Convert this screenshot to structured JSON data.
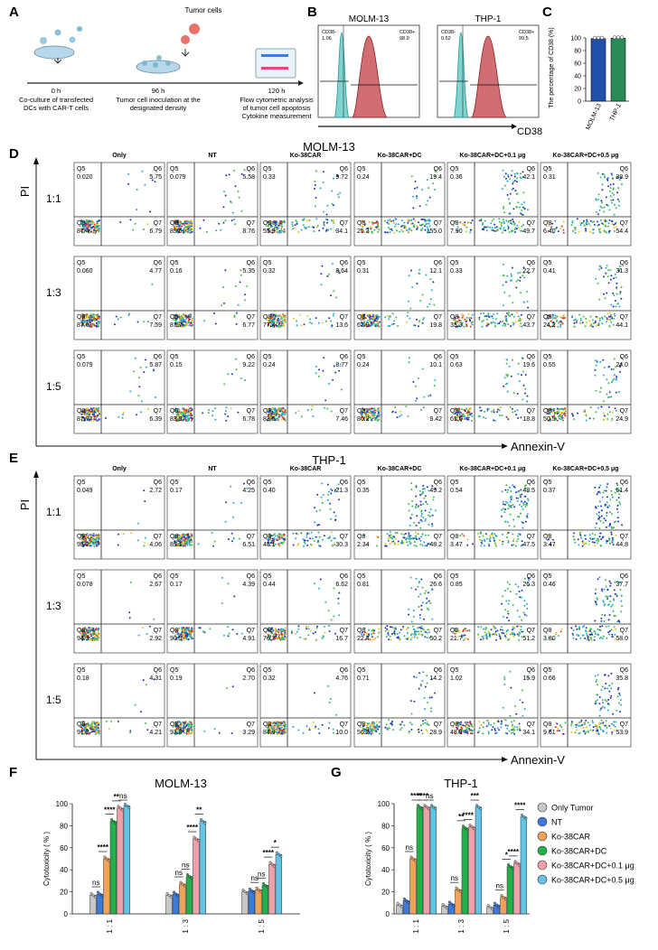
{
  "panel_a": {
    "letter": "A",
    "tumor_cells": "Tumor cells",
    "steps": [
      {
        "time": "0 h",
        "desc": [
          "Co-culture of transfected",
          "DCs with CAR-T cells"
        ]
      },
      {
        "time": "96 h",
        "desc": [
          "Tumor cell inoculation at the",
          "designated density"
        ]
      },
      {
        "time": "120 h",
        "desc": [
          "Flow cytometric analysis",
          "of tumor cell apoptosis",
          "Cytokine measurement"
        ]
      }
    ]
  },
  "panel_b": {
    "letter": "B",
    "xlabel": "CD38",
    "plots": [
      {
        "title": "MOLM-13",
        "neg_label": "CD38-",
        "neg_value": "1.06",
        "pos_label": "CD38+",
        "pos_value": "98.9"
      },
      {
        "title": "THP-1",
        "neg_label": "CD38-",
        "neg_value": "0.52",
        "pos_label": "CD38+",
        "pos_value": "99.5"
      }
    ]
  },
  "panel_c": {
    "letter": "C",
    "ylabel": "The percentage of CD38 (%)",
    "chart_data": {
      "type": "bar",
      "categories": [
        "MOLM-13",
        "THP-1"
      ],
      "values": [
        98.9,
        99.5
      ],
      "ylim": [
        0,
        100
      ],
      "yticks": [
        0,
        20,
        40,
        60,
        80,
        100
      ],
      "colors": [
        "#1f4fa8",
        "#2a8a55"
      ]
    }
  },
  "flow_common": {
    "columns": [
      "Only",
      "NT",
      "Ko-38CAR",
      "Ko-38CAR+DC",
      "Ko-38CAR+DC+0.1 μg",
      "Ko-38CAR+DC+0.5 μg"
    ],
    "rows": [
      "1:1",
      "1:3",
      "1:5"
    ],
    "yaxis": "PI",
    "xaxis": "Annexin-V",
    "quadrants": [
      "Q5",
      "Q6",
      "Q7",
      "Q8"
    ]
  },
  "panel_d": {
    "letter": "D",
    "title": "MOLM-13",
    "values": [
      [
        [
          "0.020",
          "5.75",
          "6.79",
          "87.4"
        ],
        [
          "0.079",
          "5.58",
          "8.76",
          "85.6"
        ],
        [
          "0.33",
          "9.72",
          "34.1",
          "55.9"
        ],
        [
          "0.24",
          "19.4",
          "55.0",
          "25.3"
        ],
        [
          "0.36",
          "42.1",
          "49.7",
          "7.90"
        ],
        [
          "0.31",
          "38.9",
          "54.4",
          "6.40"
        ]
      ],
      [
        [
          "0.060",
          "4.77",
          "7.59",
          "87.6"
        ],
        [
          "0.16",
          "5.35",
          "6.77",
          "87.7"
        ],
        [
          "0.32",
          "8.64",
          "13.6",
          "77.4"
        ],
        [
          "0.31",
          "12.1",
          "19.8",
          "67.9"
        ],
        [
          "0.33",
          "22.7",
          "43.7",
          "33.3"
        ],
        [
          "0.41",
          "31.3",
          "44.1",
          "24.2"
        ]
      ],
      [
        [
          "0.079",
          "5.87",
          "6.39",
          "87.7"
        ],
        [
          "0.15",
          "9.22",
          "6.78",
          "83.9"
        ],
        [
          "0.24",
          "8.77",
          "7.46",
          "83.5"
        ],
        [
          "0.24",
          "10.1",
          "9.42",
          "80.2"
        ],
        [
          "0.63",
          "19.6",
          "18.8",
          "61.0"
        ],
        [
          "0.55",
          "24.0",
          "24.9",
          "50.5"
        ]
      ]
    ]
  },
  "panel_e": {
    "letter": "E",
    "title": "THP-1",
    "values": [
      [
        [
          "0.049",
          "2.72",
          "4.06",
          "93.2"
        ],
        [
          "0.17",
          "4.25",
          "6.51",
          "89.1"
        ],
        [
          "0.40",
          "21.3",
          "30.3",
          "48.1"
        ],
        [
          "0.35",
          "49.2",
          "48.2",
          "2.34"
        ],
        [
          "0.54",
          "48.5",
          "47.5",
          "3.47"
        ],
        [
          "0.37",
          "51.4",
          "44.8",
          "3.47"
        ]
      ],
      [
        [
          "0.078",
          "2.67",
          "2.92",
          "94.3"
        ],
        [
          "0.17",
          "4.39",
          "4.91",
          "90.5"
        ],
        [
          "0.44",
          "6.62",
          "16.7",
          "76.2"
        ],
        [
          "0.81",
          "26.6",
          "50.2",
          "22.4"
        ],
        [
          "0.85",
          "26.3",
          "51.2",
          "21.7"
        ],
        [
          "0.46",
          "37.7",
          "58.0",
          "3.80"
        ]
      ],
      [
        [
          "0.18",
          "4.31",
          "4.21",
          "91.3"
        ],
        [
          "0.19",
          "2.70",
          "3.29",
          "93.8"
        ],
        [
          "0.32",
          "4.76",
          "10.0",
          "84.9"
        ],
        [
          "0.71",
          "14.2",
          "28.9",
          "56.2"
        ],
        [
          "1.02",
          "15.9",
          "34.1",
          "48.9"
        ],
        [
          "0.66",
          "35.8",
          "53.9",
          "9.61"
        ]
      ]
    ]
  },
  "panel_f": {
    "letter": "F",
    "ylabel": "Cytotoxicity ( % )",
    "chart_data": {
      "type": "bar",
      "title": "MOLM-13",
      "categories": [
        "1 : 1",
        "1 : 3",
        "1 : 5"
      ],
      "ylim": [
        0,
        100
      ],
      "yticks": [
        0,
        20,
        40,
        60,
        80,
        100
      ],
      "series": [
        {
          "name": "Only Tumor",
          "values": [
            17,
            17,
            20
          ]
        },
        {
          "name": "NT",
          "values": [
            18,
            18,
            21
          ]
        },
        {
          "name": "Ko-38CAR",
          "values": [
            50,
            27,
            22
          ]
        },
        {
          "name": "Ko-38CAR+DC",
          "values": [
            84,
            34,
            26
          ]
        },
        {
          "name": "Ko-38CAR+DC+0.1 μg",
          "values": [
            96,
            68,
            45
          ]
        },
        {
          "name": "Ko-38CAR+DC+0.5 μg",
          "values": [
            98,
            84,
            54
          ]
        }
      ],
      "annotations": [
        {
          "group": 0,
          "labels": [
            "ns",
            "****",
            "****",
            "**",
            "ns"
          ]
        },
        {
          "group": 1,
          "labels": [
            "ns",
            "ns",
            "****",
            "**"
          ]
        },
        {
          "group": 2,
          "labels": [
            "ns",
            "ns",
            "****",
            "*"
          ]
        }
      ]
    }
  },
  "panel_g": {
    "letter": "G",
    "ylabel": "Cytotoxicity ( % )",
    "chart_data": {
      "type": "bar",
      "title": "THP-1",
      "categories": [
        "1 : 1",
        "1 : 3",
        "1 : 5"
      ],
      "ylim": [
        0,
        100
      ],
      "yticks": [
        0,
        20,
        40,
        60,
        80,
        100
      ],
      "series": [
        {
          "name": "Only Tumor",
          "values": [
            8,
            7,
            6
          ]
        },
        {
          "name": "NT",
          "values": [
            12,
            9,
            8
          ]
        },
        {
          "name": "Ko-38CAR",
          "values": [
            50,
            22,
            15
          ]
        },
        {
          "name": "Ko-38CAR+DC",
          "values": [
            97,
            78,
            43
          ]
        },
        {
          "name": "Ko-38CAR+DC+0.1 μg",
          "values": [
            97,
            79,
            46
          ]
        },
        {
          "name": "Ko-38CAR+DC+0.5 μg",
          "values": [
            97,
            97,
            88
          ]
        }
      ],
      "annotations": [
        {
          "group": 0,
          "labels": [
            "ns",
            "****",
            "****",
            "ns"
          ]
        },
        {
          "group": 1,
          "labels": [
            "ns",
            "**",
            "****",
            "***"
          ]
        },
        {
          "group": 2,
          "labels": [
            "ns",
            "*",
            "****",
            "****"
          ]
        }
      ]
    }
  },
  "legend": {
    "items": [
      "Only Tumor",
      "NT",
      "Ko-38CAR",
      "Ko-38CAR+DC",
      "Ko-38CAR+DC+0.1 μg",
      "Ko-38CAR+DC+0.5 μg"
    ],
    "colors": [
      "#c8c8c8",
      "#3d7bd9",
      "#f2a35a",
      "#22b04a",
      "#f0a0a8",
      "#63c4e8"
    ]
  }
}
